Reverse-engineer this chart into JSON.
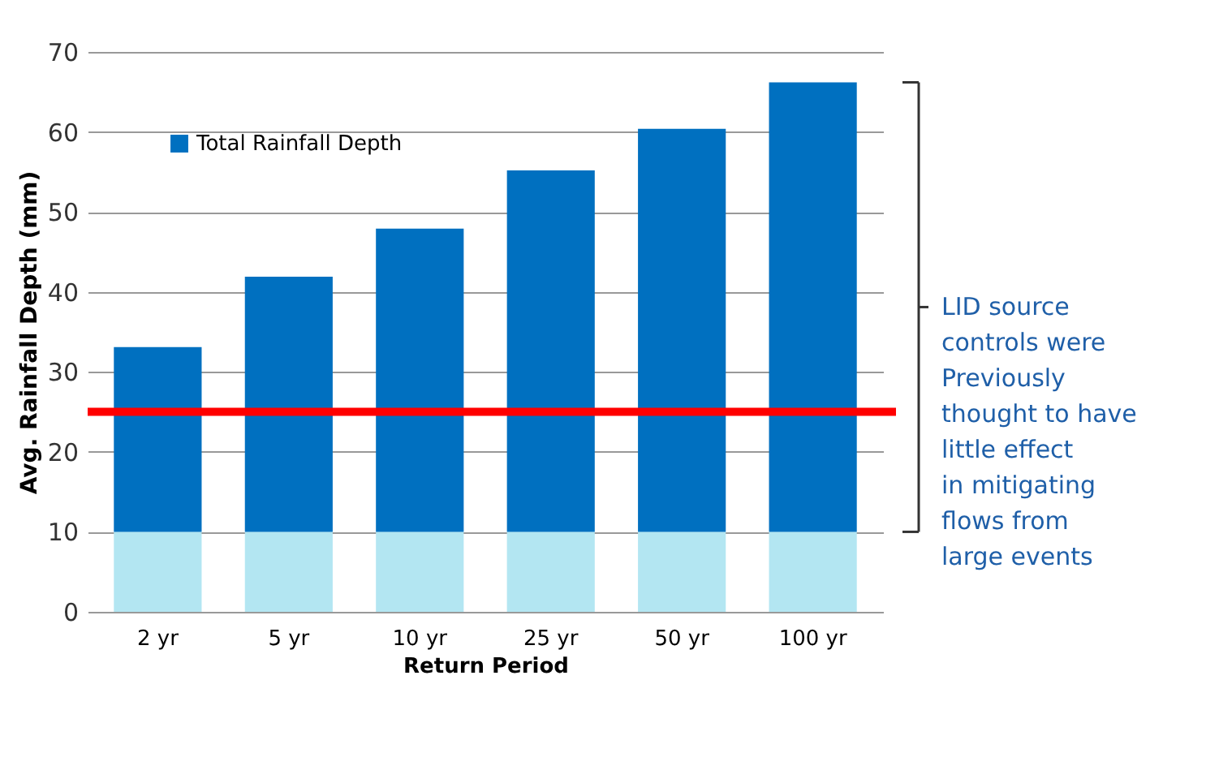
{
  "chart_data": {
    "type": "bar",
    "stacked": true,
    "xlabel": "Return Period",
    "ylabel": "Avg. Rainfall Depth (mm)",
    "categories": [
      "2 yr",
      "5 yr",
      "10 yr",
      "25 yr",
      "50 yr",
      "100 yr"
    ],
    "series": [
      {
        "color": "#b3e6f2",
        "values": [
          10,
          10,
          10,
          10,
          10,
          10
        ]
      },
      {
        "name": "Total Rainfall Depth",
        "color": "#0070c0",
        "values": [
          23.1,
          31.9,
          37.9,
          45.2,
          50.4,
          56.2
        ]
      }
    ],
    "ylim": [
      0,
      70
    ],
    "yticks": [
      0,
      10,
      20,
      30,
      40,
      50,
      60,
      70
    ],
    "grid": "y",
    "legend": "top left",
    "ref_lines": [
      {
        "axis": "y",
        "value": 25,
        "color": "#ff0000"
      }
    ],
    "annotations": [
      "LID source controls were Previously thought to have little effect in mitigating flows from large events"
    ]
  }
}
